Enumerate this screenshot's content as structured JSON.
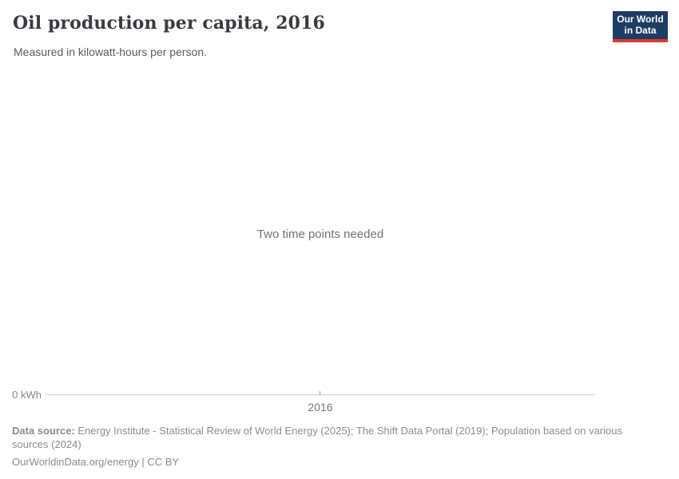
{
  "header": {
    "title": "Oil production per capita, 2016",
    "subtitle": "Measured in kilowatt-hours per person.",
    "logo": {
      "line1": "Our World",
      "line2": "in Data",
      "background_color": "#1d3d63",
      "accent_bar_color": "#dc3a2f",
      "text_color": "#ffffff"
    }
  },
  "chart": {
    "empty_state_message": "Two time points needed",
    "y_axis_label": "0 kWh",
    "x_tick_label": "2016",
    "axis_line_color": "#cccfd1"
  },
  "chart_data": {
    "type": "line",
    "title": "Oil production per capita, 2016",
    "subtitle": "Measured in kilowatt-hours per person.",
    "x": [
      2016
    ],
    "x_tick_labels": [
      "2016"
    ],
    "y_tick_labels": [
      "0 kWh"
    ],
    "ylim_min_label": "0 kWh",
    "series": [],
    "annotations": [
      "Two time points needed"
    ],
    "grid": false,
    "legend": false,
    "note": "Empty chart state; no data series rendered, only baseline axis at 0 kWh and single year tick 2016"
  },
  "footer": {
    "datasource_label": "Data source:",
    "datasource_text": " Energy Institute - Statistical Review of World Energy (2025); The Shift Data Portal (2019); Population based on various sources (2024)",
    "license_line": "OurWorldinData.org/energy | CC BY"
  }
}
